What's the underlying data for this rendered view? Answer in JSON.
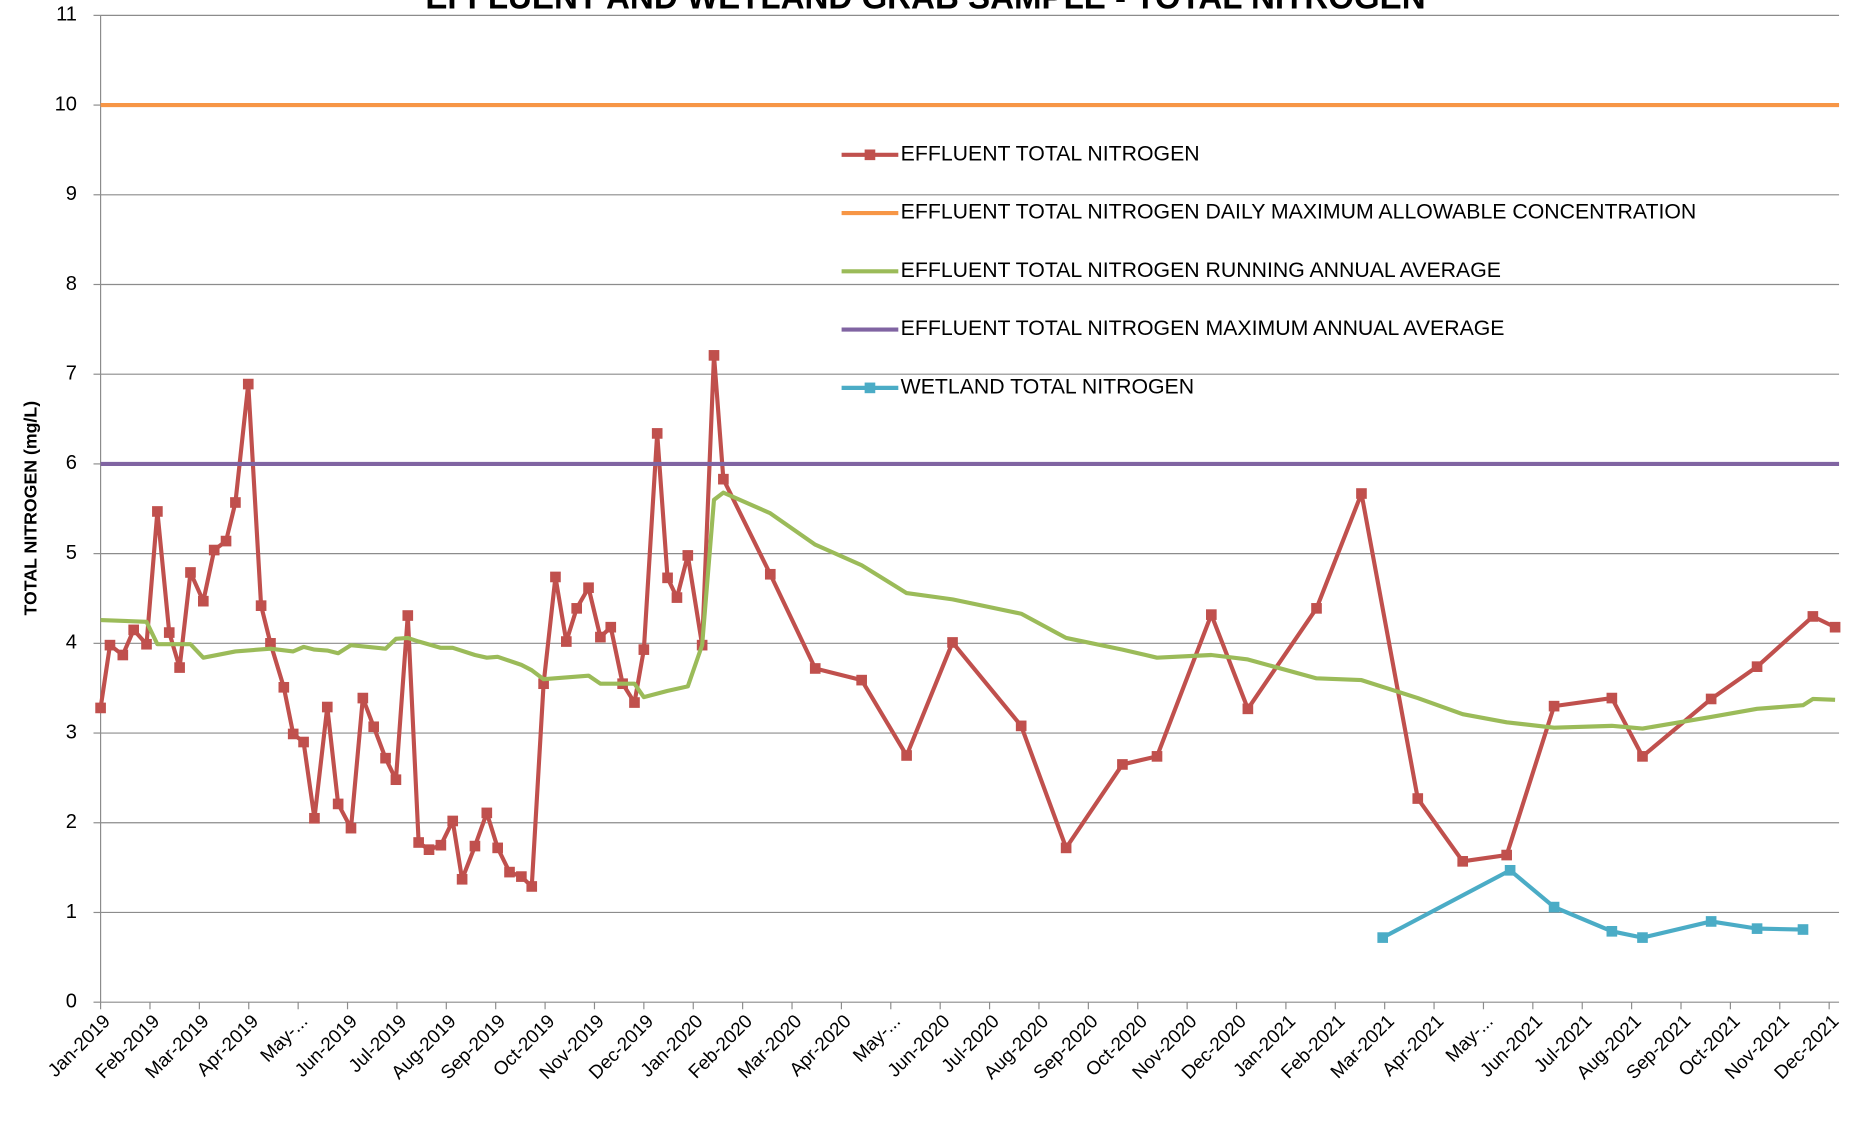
{
  "chart_data": {
    "type": "line",
    "title": "EFFLUENT AND WETLAND GRAB SAMPLE - TOTAL NITROGEN",
    "y_label": "TOTAL NITROGEN  (mg/L)",
    "xlim": [
      0,
      35.2
    ],
    "xticks": [
      {
        "value": 0,
        "label": "Jan-2019"
      },
      {
        "value": 1,
        "label": "Feb-2019"
      },
      {
        "value": 2,
        "label": "Mar-2019"
      },
      {
        "value": 3,
        "label": "Apr-2019"
      },
      {
        "value": 4,
        "label": "May-..."
      },
      {
        "value": 5,
        "label": "Jun-2019"
      },
      {
        "value": 6,
        "label": "Jul-2019"
      },
      {
        "value": 7,
        "label": "Aug-2019"
      },
      {
        "value": 8,
        "label": "Sep-2019"
      },
      {
        "value": 9,
        "label": "Oct-2019"
      },
      {
        "value": 10,
        "label": "Nov-2019"
      },
      {
        "value": 11,
        "label": "Dec-2019"
      },
      {
        "value": 12,
        "label": "Jan-2020"
      },
      {
        "value": 13,
        "label": "Feb-2020"
      },
      {
        "value": 14,
        "label": "Mar-2020"
      },
      {
        "value": 15,
        "label": "Apr-2020"
      },
      {
        "value": 16,
        "label": "May-..."
      },
      {
        "value": 17,
        "label": "Jun-2020"
      },
      {
        "value": 18,
        "label": "Jul-2020"
      },
      {
        "value": 19,
        "label": "Aug-2020"
      },
      {
        "value": 20,
        "label": "Sep-2020"
      },
      {
        "value": 21,
        "label": "Oct-2020"
      },
      {
        "value": 22,
        "label": "Nov-2020"
      },
      {
        "value": 23,
        "label": "Dec-2020"
      },
      {
        "value": 24,
        "label": "Jan-2021"
      },
      {
        "value": 25,
        "label": "Feb-2021"
      },
      {
        "value": 26,
        "label": "Mar-2021"
      },
      {
        "value": 27,
        "label": "Apr-2021"
      },
      {
        "value": 28,
        "label": "May-..."
      },
      {
        "value": 29,
        "label": "Jun-2021"
      },
      {
        "value": 30,
        "label": "Jul-2021"
      },
      {
        "value": 31,
        "label": "Aug-2021"
      },
      {
        "value": 32,
        "label": "Sep-2021"
      },
      {
        "value": 33,
        "label": "Oct-2021"
      },
      {
        "value": 34,
        "label": "Nov-2021"
      },
      {
        "value": 35,
        "label": "Dec-2021"
      }
    ],
    "ylim": [
      0,
      11
    ],
    "yticks": [
      0,
      1,
      2,
      3,
      4,
      5,
      6,
      7,
      8,
      9,
      10,
      11
    ],
    "grid": true,
    "legend": "top-center",
    "series": [
      {
        "name": "EFFLUENT TOTAL  NITROGEN",
        "color": "#c0504d",
        "markers": true,
        "x": [
          0,
          0.19,
          0.45,
          0.67,
          0.93,
          1.15,
          1.39,
          1.6,
          1.82,
          2.08,
          2.3,
          2.54,
          2.73,
          2.99,
          3.25,
          3.44,
          3.71,
          3.9,
          4.11,
          4.33,
          4.59,
          4.81,
          5.07,
          5.31,
          5.53,
          5.77,
          5.98,
          6.22,
          6.44,
          6.65,
          6.89,
          7.13,
          7.32,
          7.58,
          7.82,
          8.04,
          8.28,
          8.52,
          8.73,
          8.97,
          9.21,
          9.43,
          9.64,
          9.88,
          10.12,
          10.33,
          10.57,
          10.81,
          11.0,
          11.27,
          11.48,
          11.67,
          11.89,
          12.18,
          12.42,
          12.61,
          13.56,
          14.47,
          15.41,
          16.32,
          17.25,
          18.64,
          19.55,
          20.69,
          21.39,
          22.49,
          23.23,
          24.62,
          25.53,
          26.67,
          27.58,
          28.47,
          29.43,
          30.6,
          31.22,
          32.61,
          33.54,
          34.67,
          35.12
        ],
        "values": [
          3.28,
          3.98,
          3.87,
          4.15,
          3.99,
          5.47,
          4.12,
          3.73,
          4.79,
          4.47,
          5.04,
          5.14,
          5.57,
          6.89,
          4.42,
          4.0,
          3.51,
          2.99,
          2.9,
          2.05,
          3.29,
          2.21,
          1.94,
          3.39,
          3.07,
          2.72,
          2.48,
          4.31,
          1.78,
          1.7,
          1.75,
          2.02,
          1.37,
          1.74,
          2.11,
          1.72,
          1.45,
          1.4,
          1.29,
          3.55,
          4.74,
          4.02,
          4.39,
          4.62,
          4.07,
          4.18,
          3.55,
          3.34,
          3.93,
          6.34,
          4.73,
          4.51,
          4.98,
          3.98,
          7.21,
          5.83,
          4.77,
          3.72,
          3.59,
          2.75,
          4.01,
          3.08,
          1.72,
          2.65,
          2.74,
          4.32,
          3.27,
          4.39,
          5.67,
          2.27,
          1.57,
          1.64,
          3.3,
          3.39,
          2.74,
          3.38,
          3.74,
          4.3,
          4.18
        ]
      },
      {
        "name": "EFFLUENT TOTAL NITROGEN DAILY MAXIMUM ALLOWABLE CONCENTRATION",
        "color": "#f79646",
        "markers": false,
        "x": [
          0,
          35.2
        ],
        "values": [
          10,
          10
        ]
      },
      {
        "name": "EFFLUENT TOTAL NITROGEN RUNNING ANNUAL AVERAGE",
        "color": "#9bbb59",
        "markers": false,
        "x": [
          0,
          0.93,
          1.15,
          1.82,
          2.08,
          2.73,
          3.44,
          3.9,
          4.11,
          4.33,
          4.59,
          4.81,
          5.07,
          5.77,
          5.98,
          6.22,
          6.44,
          6.89,
          7.13,
          7.58,
          7.82,
          8.04,
          8.52,
          8.73,
          8.97,
          9.88,
          10.12,
          10.81,
          11.0,
          11.48,
          11.89,
          12.18,
          12.42,
          12.61,
          13.56,
          14.47,
          15.41,
          16.32,
          17.25,
          18.64,
          19.55,
          20.69,
          21.39,
          22.49,
          23.23,
          24.62,
          25.53,
          26.67,
          27.58,
          28.47,
          29.43,
          30.6,
          31.22,
          32.61,
          33.54,
          34.47,
          34.67,
          35.12
        ],
        "values": [
          4.26,
          4.24,
          3.99,
          3.99,
          3.84,
          3.91,
          3.94,
          3.91,
          3.96,
          3.93,
          3.92,
          3.89,
          3.98,
          3.94,
          4.05,
          4.06,
          4.02,
          3.95,
          3.95,
          3.87,
          3.84,
          3.85,
          3.76,
          3.7,
          3.6,
          3.64,
          3.55,
          3.55,
          3.4,
          3.47,
          3.52,
          3.98,
          5.6,
          5.68,
          5.45,
          5.1,
          4.87,
          4.56,
          4.49,
          4.33,
          4.06,
          3.93,
          3.84,
          3.87,
          3.82,
          3.61,
          3.59,
          3.39,
          3.21,
          3.12,
          3.06,
          3.08,
          3.05,
          3.18,
          3.27,
          3.31,
          3.38,
          3.37
        ]
      },
      {
        "name": "EFFLUENT TOTAL NITROGEN MAXIMUM ANNUAL AVERAGE",
        "color": "#8064a2",
        "markers": false,
        "x": [
          0,
          35.2
        ],
        "values": [
          6,
          6
        ]
      },
      {
        "name": "WETLAND TOTAL  NITROGEN",
        "color": "#4bacc6",
        "markers": true,
        "x": [
          25.96,
          28.54,
          29.43,
          30.6,
          31.22,
          32.61,
          33.54,
          34.47
        ],
        "values": [
          0.72,
          1.47,
          1.06,
          0.79,
          0.72,
          0.9,
          0.82,
          0.81
        ]
      }
    ]
  }
}
